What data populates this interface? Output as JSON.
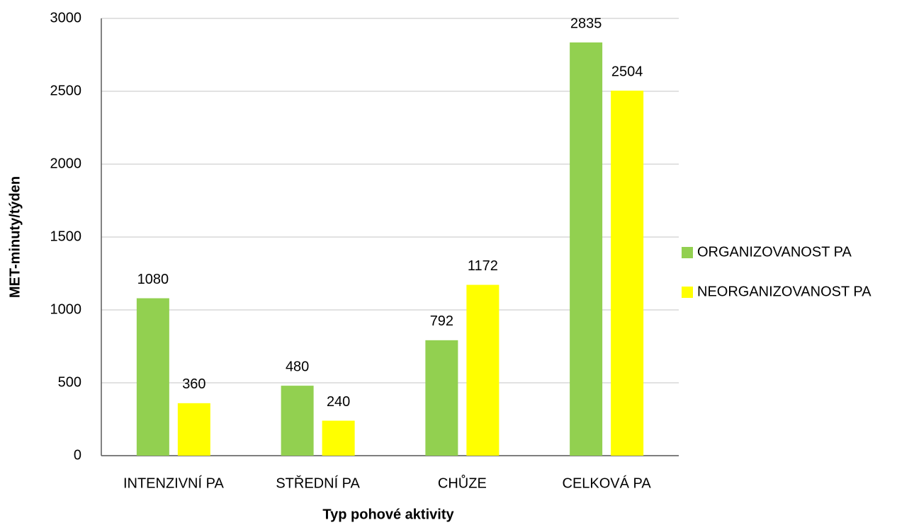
{
  "chart_data": {
    "type": "bar",
    "xlabel": "Typ pohové aktivity",
    "ylabel": "MET-minuty/týden",
    "categories": [
      "INTENZIVNÍ PA",
      "STŘEDNÍ PA",
      "CHŮZE",
      "CELKOVÁ PA"
    ],
    "series": [
      {
        "name": "ORGANIZOVANOST PA",
        "color": "#92d050",
        "values": [
          1080,
          480,
          792,
          2835
        ]
      },
      {
        "name": "NEORGANIZOVANOST PA",
        "color": "#ffff00",
        "values": [
          360,
          240,
          1172,
          2504
        ]
      }
    ],
    "ylim": [
      0,
      3000
    ],
    "yticks": [
      0,
      500,
      1000,
      1500,
      2000,
      2500,
      3000
    ],
    "grid": true,
    "legend": "right"
  }
}
